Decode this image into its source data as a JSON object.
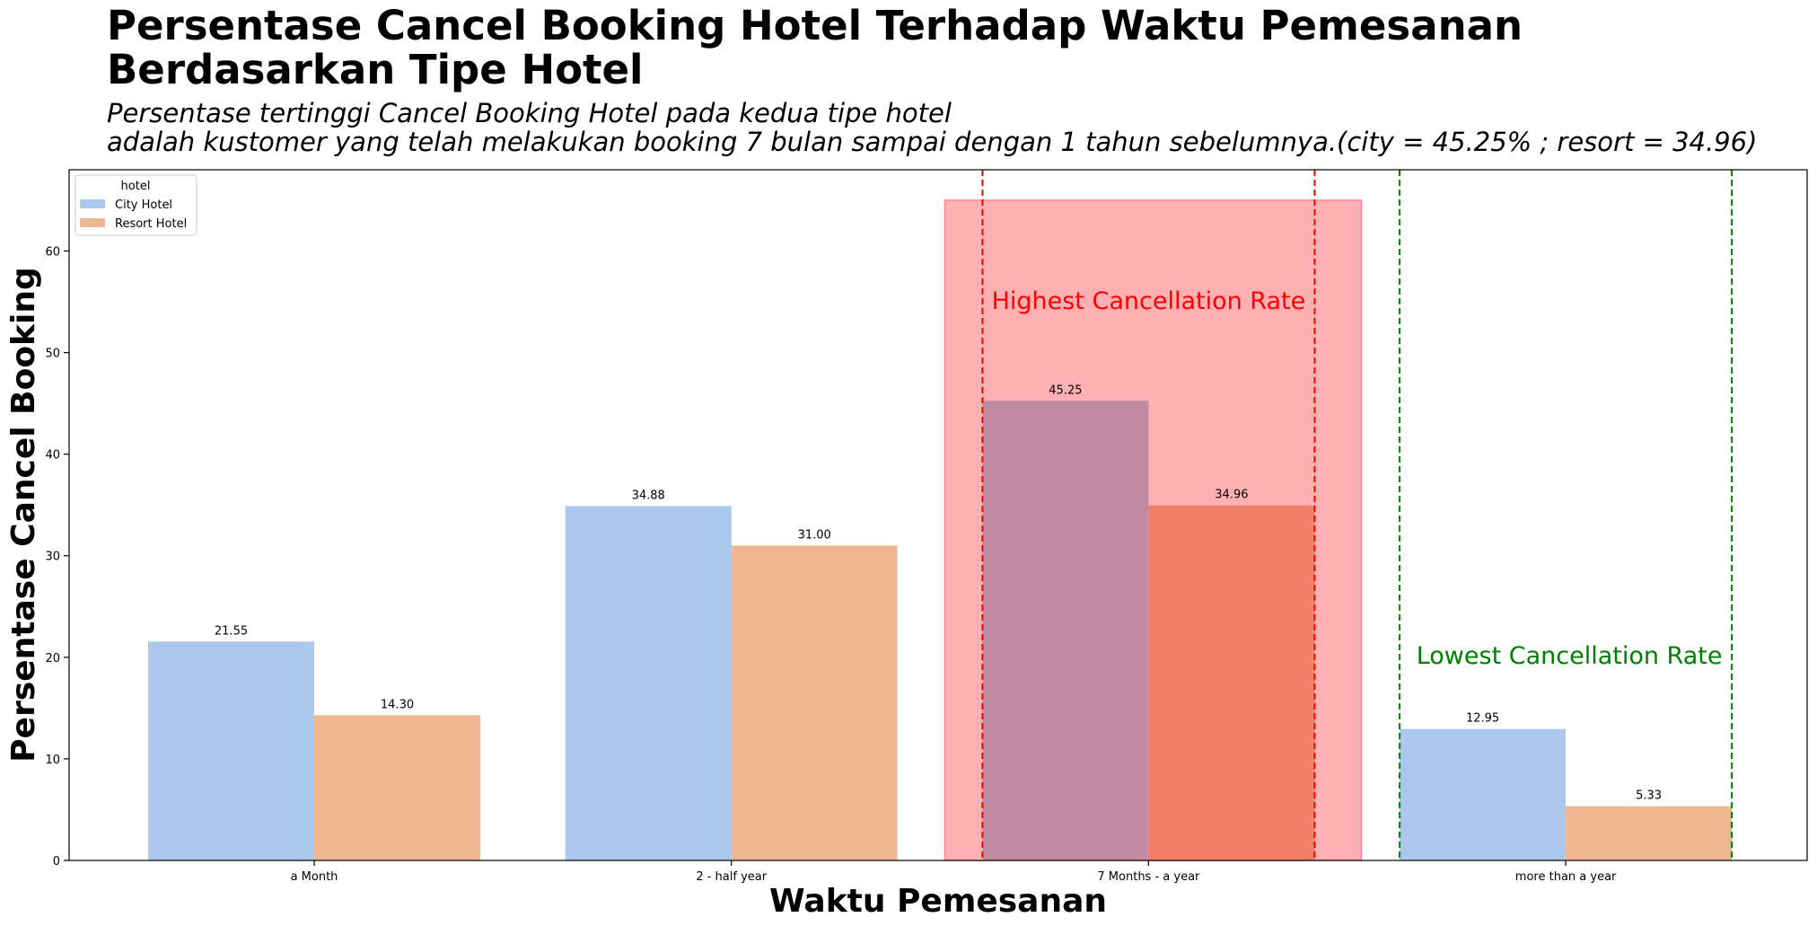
{
  "chart_data": {
    "type": "bar",
    "title_lines": [
      "Persentase Cancel Booking Hotel Terhadap Waktu Pemesanan",
      "Berdasarkan Tipe Hotel"
    ],
    "subtitle_lines": [
      "Persentase tertinggi Cancel Booking Hotel pada kedua tipe hotel",
      "adalah kustomer yang telah melakukan booking 7 bulan sampai dengan 1 tahun sebelumnya.(city = 45.25% ; resort = 34.96)"
    ],
    "xlabel": "Waktu Pemesanan",
    "ylabel": "Persentase Cancel Booking",
    "categories": [
      "a Month",
      "2 - half year",
      "7 Months - a year",
      "more than a year"
    ],
    "series": [
      {
        "name": "City Hotel",
        "values": [
          21.55,
          34.88,
          45.25,
          12.95
        ],
        "labels": [
          "21.55",
          "34.88",
          "45.25",
          "12.95"
        ],
        "color": "#abc9ec"
      },
      {
        "name": "Resort Hotel",
        "values": [
          14.3,
          31.0,
          34.96,
          5.33
        ],
        "labels": [
          "14.30",
          "31.00",
          "34.96",
          "5.33"
        ],
        "color": "#efb791"
      }
    ],
    "ylim": [
      0,
      68
    ],
    "yticks": [
      0,
      10,
      20,
      30,
      40,
      50,
      60
    ],
    "ytick_labels": [
      "0",
      "10",
      "20",
      "30",
      "40",
      "50",
      "60"
    ],
    "grid": false,
    "legend": {
      "title": "hotel",
      "placement": "top-left"
    },
    "annotations": {
      "highlight": {
        "text": "Highest Cancellation Rate",
        "category": "7 Months - a year",
        "color": "#ff0000",
        "fill": "#ffb0b2",
        "top_value": 65
      },
      "low": {
        "text": "Lowest Cancellation Rate",
        "category": "more than a year",
        "color": "#008000"
      }
    }
  }
}
